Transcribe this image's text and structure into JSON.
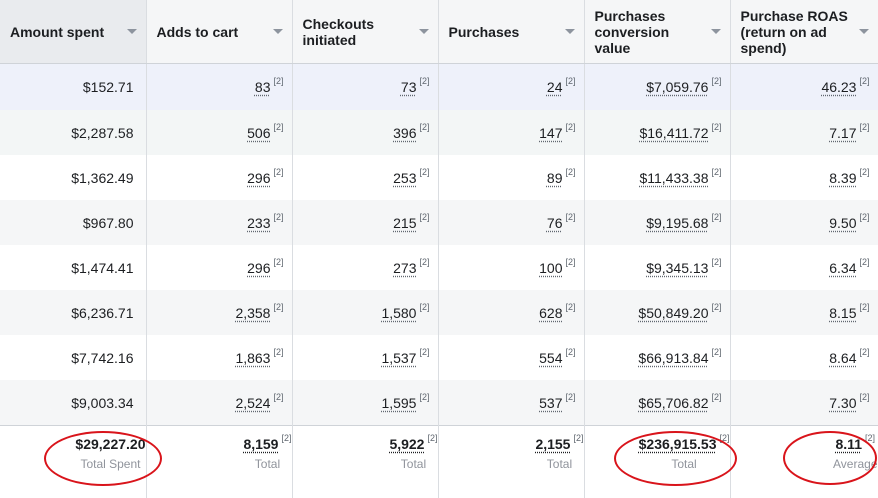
{
  "columns": [
    {
      "label": "Amount spent"
    },
    {
      "label": "Adds to cart"
    },
    {
      "label": "Checkouts initiated"
    },
    {
      "label": "Purchases"
    },
    {
      "label": "Purchases conversion value"
    },
    {
      "label": "Purchase ROAS (return on ad spend)"
    }
  ],
  "rows": [
    {
      "amount": "$152.71",
      "adds": "83",
      "checkouts": "73",
      "purchases": "24",
      "value": "$7,059.76",
      "roas": "46.23"
    },
    {
      "amount": "$2,287.58",
      "adds": "506",
      "checkouts": "396",
      "purchases": "147",
      "value": "$16,411.72",
      "roas": "7.17"
    },
    {
      "amount": "$1,362.49",
      "adds": "296",
      "checkouts": "253",
      "purchases": "89",
      "value": "$11,433.38",
      "roas": "8.39"
    },
    {
      "amount": "$967.80",
      "adds": "233",
      "checkouts": "215",
      "purchases": "76",
      "value": "$9,195.68",
      "roas": "9.50"
    },
    {
      "amount": "$1,474.41",
      "adds": "296",
      "checkouts": "273",
      "purchases": "100",
      "value": "$9,345.13",
      "roas": "6.34"
    },
    {
      "amount": "$6,236.71",
      "adds": "2,358",
      "checkouts": "1,580",
      "purchases": "628",
      "value": "$50,849.20",
      "roas": "8.15"
    },
    {
      "amount": "$7,742.16",
      "adds": "1,863",
      "checkouts": "1,537",
      "purchases": "554",
      "value": "$66,913.84",
      "roas": "8.64"
    },
    {
      "amount": "$9,003.34",
      "adds": "2,524",
      "checkouts": "1,595",
      "purchases": "537",
      "value": "$65,706.82",
      "roas": "7.30"
    }
  ],
  "footnote": "[2]",
  "totals": {
    "amount": {
      "value": "$29,227.20",
      "label": "Total Spent"
    },
    "adds": {
      "value": "8,159",
      "label": "Total"
    },
    "checkouts": {
      "value": "5,922",
      "label": "Total"
    },
    "purchases": {
      "value": "2,155",
      "label": "Total"
    },
    "value": {
      "value": "$236,915.53",
      "label": "Total"
    },
    "roas": {
      "value": "8.11",
      "label": "Average"
    }
  },
  "highlight_color": "#d9141b"
}
